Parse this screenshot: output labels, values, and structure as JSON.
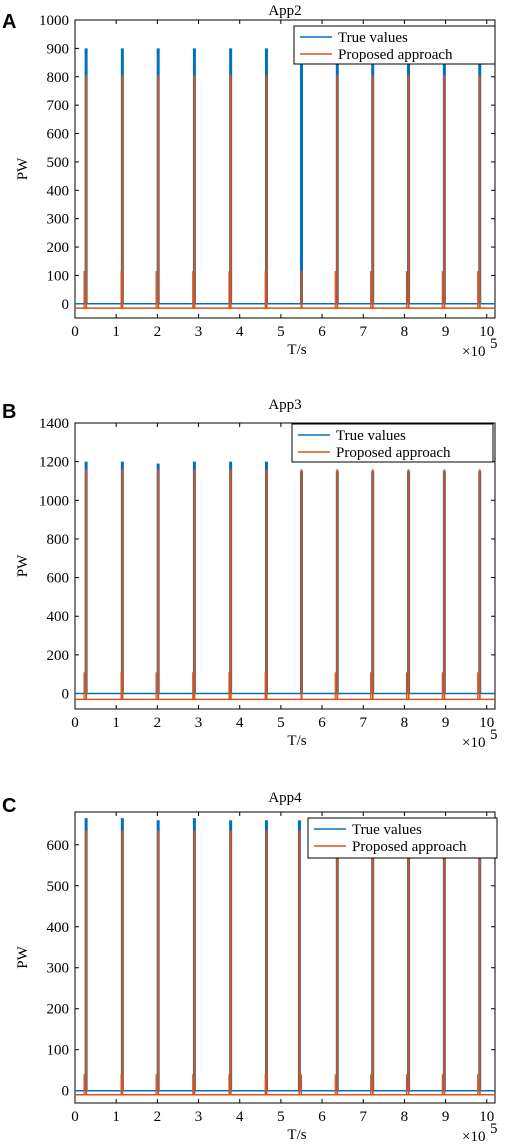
{
  "chart_data": [
    {
      "panel": "A",
      "type": "line",
      "title": "App2",
      "xlabel": "T/s",
      "ylabel": "PW",
      "x_multiplier": "×10",
      "x_multiplier_exp": "5",
      "xlim": [
        0,
        10.2
      ],
      "ylim": [
        -50,
        1000
      ],
      "xticks": [
        "0",
        "1",
        "2",
        "3",
        "4",
        "5",
        "6",
        "7",
        "8",
        "9",
        "10"
      ],
      "yticks": [
        "0",
        "100",
        "200",
        "300",
        "400",
        "500",
        "600",
        "700",
        "800",
        "900",
        "1000"
      ],
      "legend_position": "top-right",
      "series": [
        {
          "name": "True values",
          "color": "#0072BD",
          "baseline": 0,
          "peaks": [
            0.27,
            1.15,
            2.02,
            2.9,
            3.78,
            4.65,
            5.5,
            6.37,
            7.23,
            8.1,
            8.97,
            9.83
          ],
          "peak_values": [
            900,
            900,
            900,
            900,
            900,
            900,
            850,
            850,
            850,
            850,
            850,
            850
          ]
        },
        {
          "name": "Proposed approach",
          "color": "#D95319",
          "baseline": -15,
          "peaks": [
            0.27,
            1.15,
            2.02,
            2.9,
            3.78,
            4.65,
            5.5,
            6.37,
            7.23,
            8.1,
            8.97,
            9.83
          ],
          "peak_values": [
            805,
            805,
            805,
            805,
            805,
            805,
            115,
            805,
            805,
            805,
            805,
            805
          ],
          "spikes": [
            0.22,
            1.12,
            1.97,
            2.86,
            3.74,
            4.62,
            5.5,
            6.32,
            7.18,
            8.05,
            8.92,
            9.78
          ],
          "spike_values": [
            115,
            115,
            115,
            115,
            115,
            115,
            115,
            115,
            115,
            115,
            115,
            115
          ]
        }
      ]
    },
    {
      "panel": "B",
      "type": "line",
      "title": "App3",
      "xlabel": "T/s",
      "ylabel": "PW",
      "x_multiplier": "×10",
      "x_multiplier_exp": "5",
      "xlim": [
        0,
        10.2
      ],
      "ylim": [
        -80,
        1400
      ],
      "xticks": [
        "0",
        "1",
        "2",
        "3",
        "4",
        "5",
        "6",
        "7",
        "8",
        "9",
        "10"
      ],
      "yticks": [
        "0",
        "200",
        "400",
        "600",
        "800",
        "1000",
        "1200",
        "1400"
      ],
      "legend_position": "top-right",
      "series": [
        {
          "name": "True values",
          "color": "#0072BD",
          "baseline": 0,
          "peaks": [
            0.27,
            1.15,
            2.02,
            2.9,
            3.78,
            4.65,
            5.5,
            6.37,
            7.23,
            8.1,
            8.97,
            9.83
          ],
          "peak_values": [
            1200,
            1200,
            1190,
            1200,
            1200,
            1200,
            1150,
            1150,
            1150,
            1150,
            1150,
            1150
          ]
        },
        {
          "name": "Proposed approach",
          "color": "#D95319",
          "baseline": -30,
          "peaks": [
            0.27,
            1.15,
            2.02,
            2.9,
            3.78,
            4.65,
            5.5,
            6.37,
            7.23,
            8.1,
            8.97,
            9.83
          ],
          "peak_values": [
            1160,
            1160,
            1160,
            1160,
            1160,
            1160,
            1160,
            1160,
            1160,
            1160,
            1160,
            1160
          ],
          "spikes": [
            0.22,
            1.12,
            1.97,
            2.86,
            3.74,
            4.62,
            5.5,
            6.32,
            7.18,
            8.05,
            8.92,
            9.78
          ],
          "spike_values": [
            110,
            110,
            110,
            110,
            110,
            110,
            110,
            110,
            110,
            110,
            110,
            110
          ]
        }
      ]
    },
    {
      "panel": "C",
      "type": "line",
      "title": "App4",
      "xlabel": "T/s",
      "ylabel": "PW",
      "x_multiplier": "×10",
      "x_multiplier_exp": "5",
      "xlim": [
        0,
        10.2
      ],
      "ylim": [
        -30,
        680
      ],
      "xticks": [
        "0",
        "1",
        "2",
        "3",
        "4",
        "5",
        "6",
        "7",
        "8",
        "9",
        "10"
      ],
      "yticks": [
        "0",
        "100",
        "200",
        "300",
        "400",
        "500",
        "600"
      ],
      "legend_position": "top-right",
      "series": [
        {
          "name": "True values",
          "color": "#0072BD",
          "baseline": 0,
          "peaks": [
            0.27,
            1.15,
            2.02,
            2.9,
            3.78,
            4.65,
            5.45,
            6.37,
            7.23,
            8.1,
            8.97,
            9.83
          ],
          "peak_values": [
            665,
            665,
            660,
            665,
            660,
            660,
            660,
            600,
            600,
            600,
            600,
            600
          ]
        },
        {
          "name": "Proposed approach",
          "color": "#D95319",
          "baseline": -10,
          "peaks": [
            0.27,
            1.15,
            2.02,
            2.9,
            3.78,
            4.65,
            5.45,
            6.37,
            7.23,
            8.1,
            8.97,
            9.83
          ],
          "peak_values": [
            635,
            635,
            635,
            635,
            635,
            635,
            635,
            635,
            635,
            635,
            635,
            635
          ],
          "spikes": [
            0.22,
            1.12,
            1.97,
            2.86,
            3.74,
            4.62,
            5.5,
            6.32,
            7.18,
            8.05,
            8.92,
            9.78
          ],
          "spike_values": [
            40,
            40,
            40,
            40,
            40,
            40,
            40,
            40,
            40,
            40,
            40,
            40
          ]
        }
      ]
    }
  ]
}
